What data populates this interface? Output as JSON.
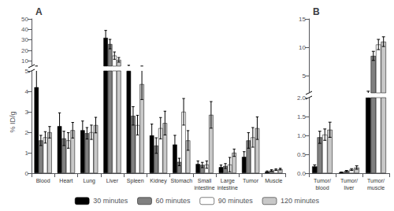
{
  "chart_data": [
    {
      "type": "bar",
      "title": "A",
      "ylabel": "% ID/g",
      "categories": [
        "Blood",
        "Heart",
        "Lung",
        "Liver",
        "Spleen",
        "Kidney",
        "Stomach",
        "Small\nintestine",
        "Large\nintestine",
        "Tumor",
        "Muscle"
      ],
      "series": [
        {
          "name": "30 minutes",
          "color": "#000000",
          "values": [
            4.2,
            2.3,
            2.1,
            32.0,
            5.0,
            1.85,
            1.4,
            0.45,
            0.3,
            0.8,
            0.08
          ],
          "errors": [
            0.9,
            0.65,
            0.45,
            7.0,
            0.8,
            0.55,
            0.45,
            0.15,
            0.1,
            0.25,
            0.03
          ]
        },
        {
          "name": "60 minutes",
          "color": "#808080",
          "values": [
            1.6,
            1.7,
            1.95,
            26.0,
            2.8,
            1.35,
            0.55,
            0.4,
            0.35,
            1.6,
            0.13
          ],
          "errors": [
            0.25,
            0.35,
            0.28,
            4.5,
            0.45,
            0.38,
            0.18,
            0.13,
            0.12,
            0.38,
            0.04
          ]
        },
        {
          "name": "90 minutes",
          "color": "#ffffff",
          "values": [
            1.75,
            1.6,
            2.0,
            15.0,
            2.35,
            2.2,
            3.0,
            0.42,
            0.42,
            1.75,
            0.17
          ],
          "errors": [
            0.28,
            0.38,
            0.35,
            3.5,
            0.48,
            0.52,
            0.65,
            0.18,
            0.35,
            0.48,
            0.04
          ]
        },
        {
          "name": "120 minutes",
          "color": "#c8c8c8",
          "values": [
            2.0,
            2.1,
            2.35,
            11.0,
            4.35,
            2.45,
            1.6,
            2.85,
            1.0,
            2.2,
            0.2
          ],
          "errors": [
            0.28,
            0.38,
            0.38,
            2.2,
            0.75,
            0.58,
            0.48,
            0.65,
            0.18,
            0.55,
            0.04
          ]
        }
      ],
      "ylim": [
        0,
        50
      ],
      "yticks": [
        0,
        1,
        2,
        3,
        4,
        5,
        10,
        20,
        30,
        40,
        50
      ],
      "grid": false,
      "legend": "bottom"
    },
    {
      "type": "bar",
      "title": "B",
      "categories": [
        "Tumor/\nblood",
        "Tumor/\nliver",
        "Tumor/\nmuscle"
      ],
      "series": [
        {
          "name": "30 minutes",
          "color": "#000000",
          "values": [
            0.18,
            0.025,
            2.0
          ],
          "errors": [
            0.04,
            0.008,
            0.3
          ]
        },
        {
          "name": "60 minutes",
          "color": "#808080",
          "values": [
            0.95,
            0.055,
            8.5
          ],
          "errors": [
            0.16,
            0.018,
            0.8
          ]
        },
        {
          "name": "90 minutes",
          "color": "#ffffff",
          "values": [
            1.02,
            0.095,
            10.5
          ],
          "errors": [
            0.15,
            0.025,
            0.9
          ]
        },
        {
          "name": "120 minutes",
          "color": "#c8c8c8",
          "values": [
            1.15,
            0.15,
            11.0
          ],
          "errors": [
            0.2,
            0.045,
            0.85
          ]
        }
      ],
      "ylim": [
        0,
        15
      ],
      "yticks": [
        {
          "value": 0,
          "label": "0.0"
        },
        0.5,
        {
          "value": 1,
          "label": "1.0"
        },
        1.5,
        {
          "value": 2,
          "label": "2.0"
        },
        5,
        10,
        15
      ],
      "grid": false
    }
  ]
}
